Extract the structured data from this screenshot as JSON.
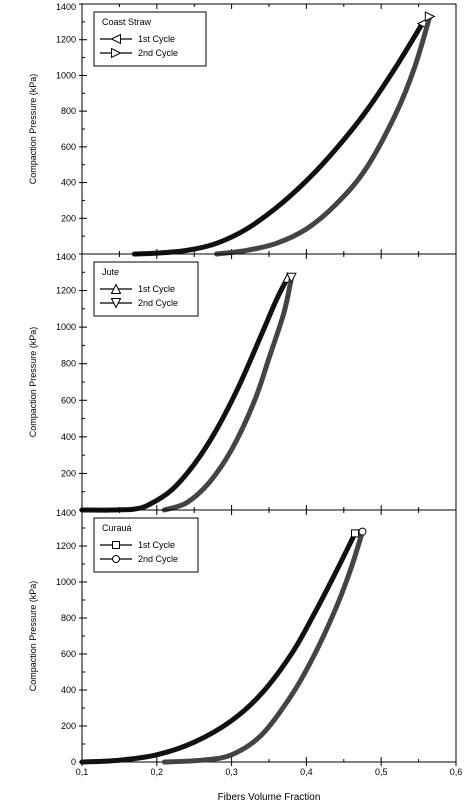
{
  "chart_data": [
    {
      "type": "line",
      "legend_title": "Coast Straw",
      "ylabel": "Compaction Pressure (kPa)",
      "xlabel": "",
      "xlim": [
        0.1,
        0.6
      ],
      "ylim": [
        0,
        1400
      ],
      "yticks": [
        "1400",
        "1200",
        "1000",
        "800",
        "600",
        "400",
        "200"
      ],
      "legend_position": "top-left",
      "series": [
        {
          "name": "1st Cycle",
          "marker": "triangle-left",
          "x": [
            0.17,
            0.2,
            0.24,
            0.28,
            0.32,
            0.36,
            0.4,
            0.44,
            0.48,
            0.52,
            0.555
          ],
          "y": [
            0,
            5,
            20,
            60,
            140,
            260,
            410,
            590,
            800,
            1050,
            1290
          ]
        },
        {
          "name": "2nd Cycle",
          "marker": "triangle-right",
          "x": [
            0.28,
            0.32,
            0.36,
            0.4,
            0.44,
            0.48,
            0.52,
            0.545,
            0.565
          ],
          "y": [
            0,
            20,
            60,
            140,
            280,
            480,
            790,
            1050,
            1330
          ]
        }
      ]
    },
    {
      "type": "line",
      "legend_title": "Jute",
      "ylabel": "Compaction Pressure (kPa)",
      "xlabel": "",
      "xlim": [
        0.1,
        0.6
      ],
      "ylim": [
        0,
        1400
      ],
      "yticks": [
        "1400",
        "1200",
        "1000",
        "800",
        "600",
        "400",
        "200"
      ],
      "legend_position": "top-left",
      "series": [
        {
          "name": "1st Cycle",
          "marker": "triangle-up",
          "x": [
            0.1,
            0.14,
            0.17,
            0.19,
            0.22,
            0.25,
            0.28,
            0.31,
            0.34,
            0.36,
            0.375
          ],
          "y": [
            0,
            0,
            5,
            30,
            110,
            250,
            440,
            680,
            960,
            1150,
            1270
          ]
        },
        {
          "name": "2nd Cycle",
          "marker": "triangle-down",
          "x": [
            0.21,
            0.24,
            0.27,
            0.3,
            0.33,
            0.35,
            0.37,
            0.38
          ],
          "y": [
            0,
            40,
            150,
            330,
            590,
            830,
            1080,
            1270
          ]
        }
      ]
    },
    {
      "type": "line",
      "legend_title": "Curauá",
      "ylabel": "Compaction Pressure (kPa)",
      "xlabel": "Fibers Volume Fraction",
      "xlim": [
        0.1,
        0.6
      ],
      "ylim": [
        0,
        1400
      ],
      "yticks": [
        "1400",
        "1200",
        "1000",
        "800",
        "600",
        "400",
        "200",
        "0"
      ],
      "xticks": [
        "0,1",
        "0,2",
        "0,3",
        "0,4",
        "0,5",
        "0,6"
      ],
      "legend_position": "top-left",
      "series": [
        {
          "name": "1st Cycle",
          "marker": "square",
          "x": [
            0.1,
            0.15,
            0.2,
            0.25,
            0.3,
            0.34,
            0.38,
            0.41,
            0.44,
            0.465
          ],
          "y": [
            0,
            10,
            40,
            110,
            230,
            380,
            600,
            820,
            1060,
            1270
          ]
        },
        {
          "name": "2nd Cycle",
          "marker": "circle",
          "x": [
            0.21,
            0.26,
            0.3,
            0.34,
            0.38,
            0.41,
            0.44,
            0.46,
            0.475
          ],
          "y": [
            0,
            10,
            40,
            150,
            370,
            590,
            860,
            1080,
            1280
          ]
        }
      ]
    }
  ]
}
